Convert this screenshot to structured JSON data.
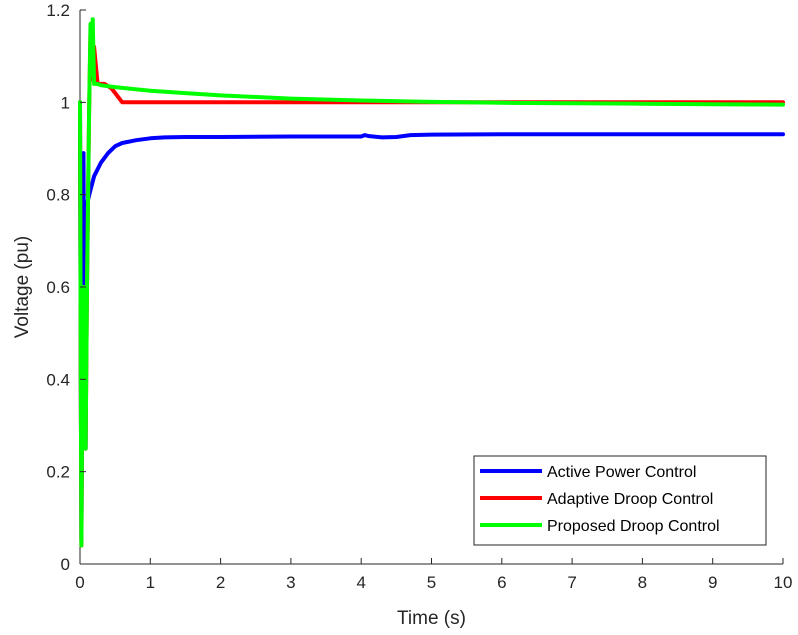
{
  "chart_data": {
    "type": "line",
    "title": "",
    "xlabel": "Time (s)",
    "ylabel": "Voltage (pu)",
    "xlim": [
      0,
      10
    ],
    "ylim": [
      0,
      1.2
    ],
    "xticks": [
      0,
      1,
      2,
      3,
      4,
      5,
      6,
      7,
      8,
      9,
      10
    ],
    "yticks": [
      0,
      0.2,
      0.4,
      0.6,
      0.8,
      1,
      1.2
    ],
    "xtick_labels": [
      "0",
      "1",
      "2",
      "3",
      "4",
      "5",
      "6",
      "7",
      "8",
      "9",
      "10"
    ],
    "ytick_labels": [
      "0",
      "0.2",
      "0.4",
      "0.6",
      "0.8",
      "1",
      "1.2"
    ],
    "grid": false,
    "legend_position": "bottom-right",
    "series": [
      {
        "name": "Active Power Control",
        "color": "#0000ff",
        "x": [
          0,
          0.01,
          0.02,
          0.03,
          0.05,
          0.06,
          0.08,
          0.1,
          0.15,
          0.2,
          0.3,
          0.4,
          0.5,
          0.6,
          0.8,
          1.0,
          1.2,
          1.5,
          2.0,
          3.0,
          4.0,
          4.05,
          4.1,
          4.3,
          4.5,
          4.7,
          5.0,
          6.0,
          7.0,
          8.0,
          9.0,
          10.0
        ],
        "y": [
          1.0,
          0.45,
          0.05,
          0.4,
          0.89,
          0.5,
          0.25,
          0.78,
          0.81,
          0.84,
          0.87,
          0.89,
          0.905,
          0.912,
          0.918,
          0.922,
          0.924,
          0.925,
          0.925,
          0.926,
          0.926,
          0.929,
          0.927,
          0.924,
          0.925,
          0.929,
          0.93,
          0.931,
          0.931,
          0.931,
          0.931,
          0.931
        ]
      },
      {
        "name": "Adaptive Droop Control",
        "color": "#ff0000",
        "x": [
          0,
          0.01,
          0.02,
          0.03,
          0.05,
          0.06,
          0.08,
          0.1,
          0.13,
          0.15,
          0.17,
          0.2,
          0.25,
          0.35,
          0.45,
          0.55,
          0.6,
          1.0,
          2.0,
          3.0,
          4.0,
          5.0,
          6.0,
          7.0,
          8.0,
          9.0,
          10.0
        ],
        "y": [
          1.0,
          0.45,
          0.04,
          0.3,
          0.6,
          0.35,
          0.25,
          0.6,
          0.98,
          1.15,
          1.05,
          1.12,
          1.04,
          1.04,
          1.03,
          1.01,
          1.0,
          1.0,
          1.0,
          1.0,
          1.0,
          1.0,
          1.0,
          1.0,
          1.0,
          1.0,
          1.0
        ]
      },
      {
        "name": "Proposed Droop Control",
        "color": "#00ff00",
        "x": [
          0,
          0.01,
          0.02,
          0.03,
          0.05,
          0.06,
          0.08,
          0.1,
          0.13,
          0.15,
          0.17,
          0.18,
          0.2,
          0.25,
          0.3,
          0.5,
          1.0,
          1.5,
          2.0,
          3.0,
          4.0,
          5.0,
          6.0,
          7.0,
          8.0,
          9.0,
          10.0
        ],
        "y": [
          1.0,
          0.45,
          0.04,
          0.3,
          0.6,
          0.35,
          0.25,
          0.6,
          0.98,
          1.17,
          1.06,
          1.18,
          1.04,
          1.04,
          1.037,
          1.033,
          1.025,
          1.02,
          1.015,
          1.008,
          1.004,
          1.001,
          0.999,
          0.998,
          0.997,
          0.996,
          0.995
        ]
      }
    ]
  }
}
